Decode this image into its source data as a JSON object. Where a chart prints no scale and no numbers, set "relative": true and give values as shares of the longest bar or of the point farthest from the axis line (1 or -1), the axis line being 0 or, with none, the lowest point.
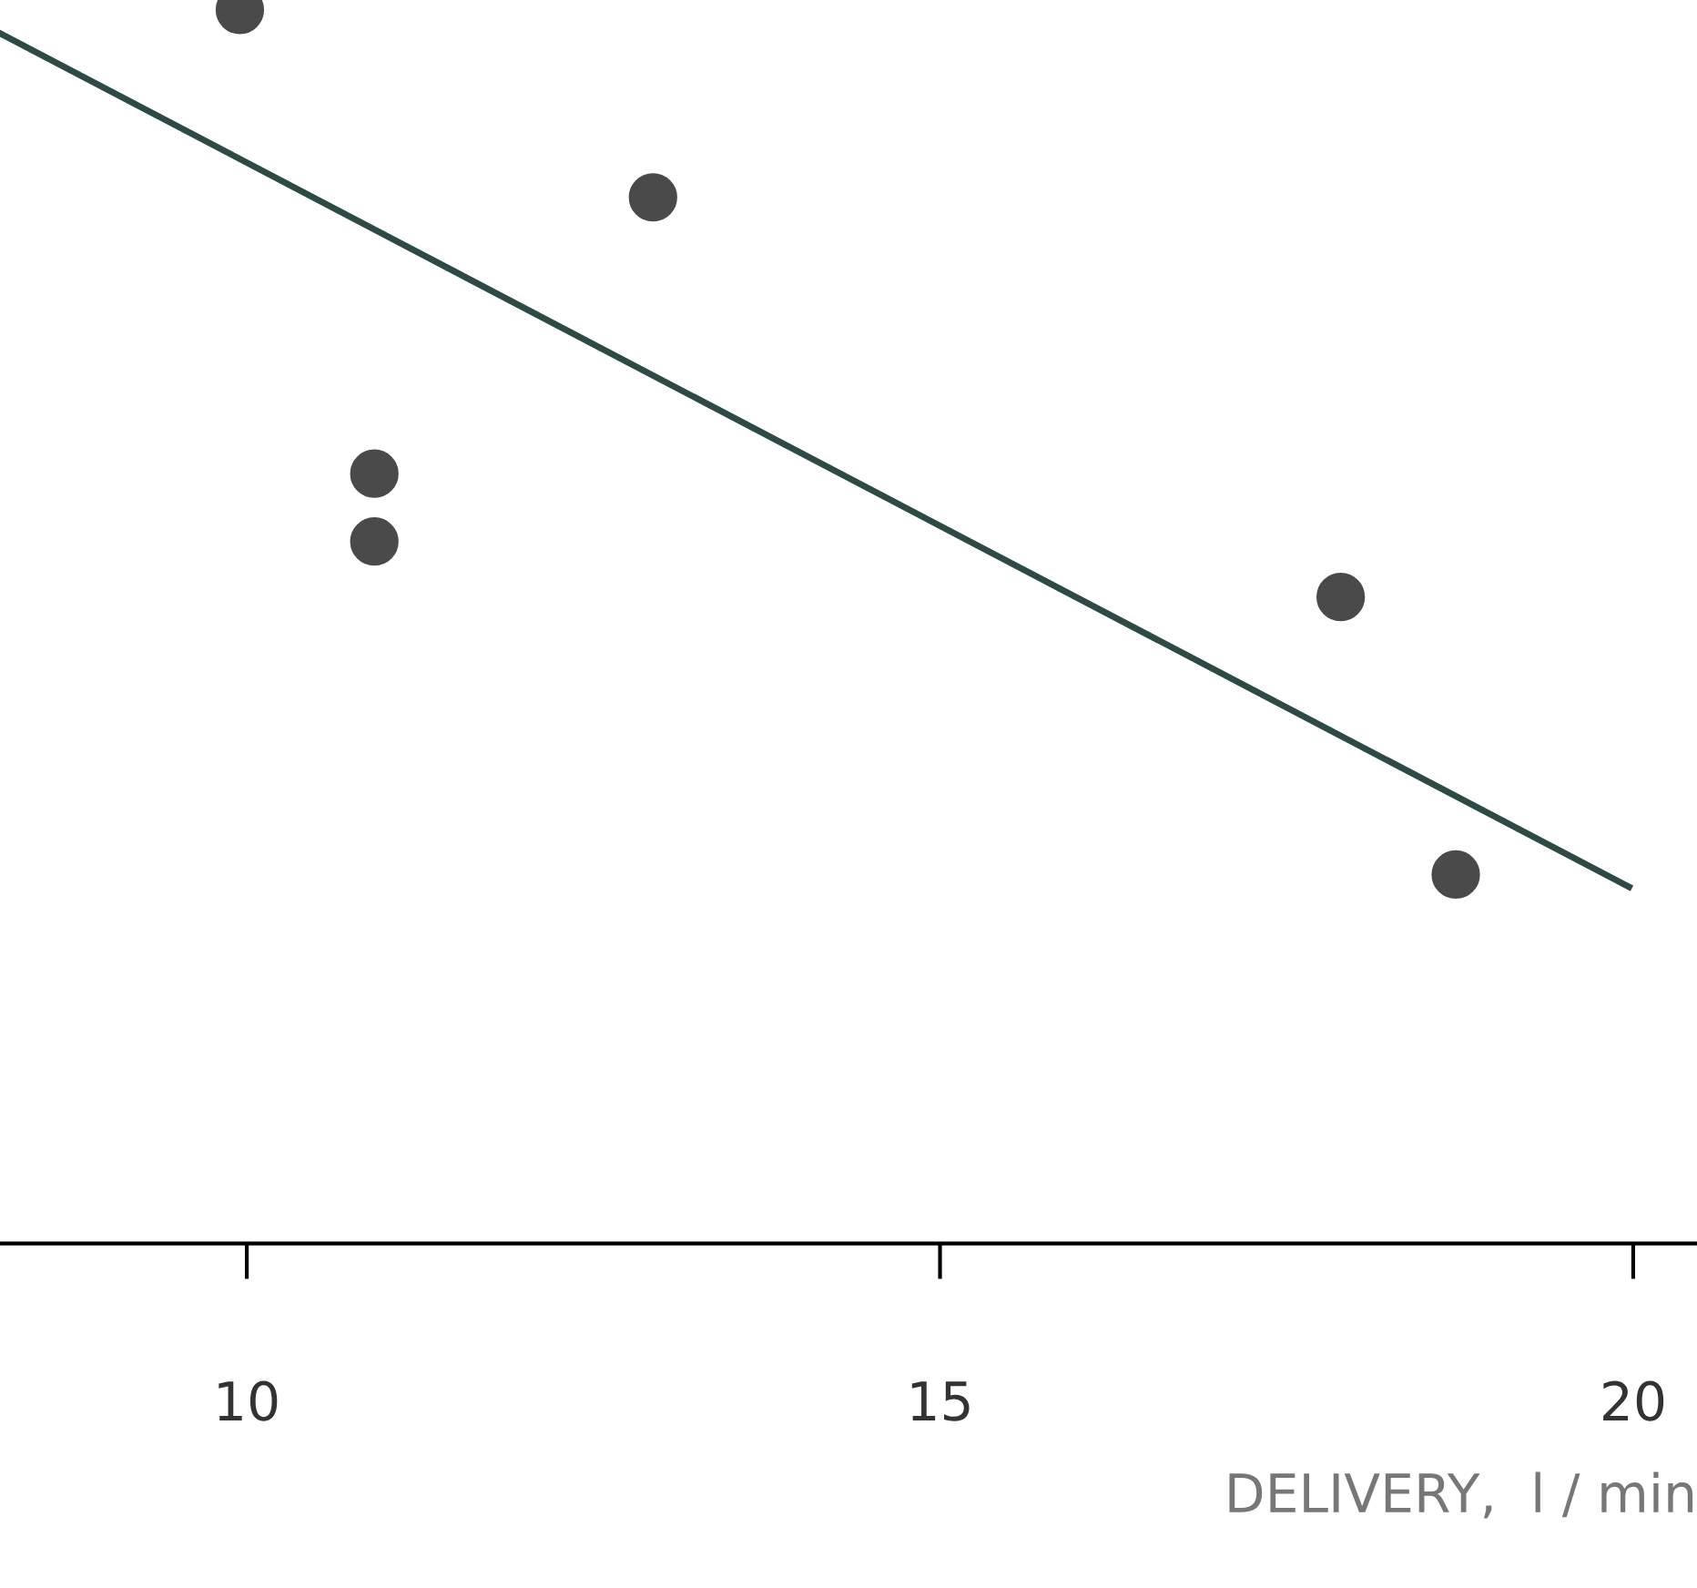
{
  "chart_data": {
    "type": "scatter",
    "xlabel": "DELIVERY,  l / min",
    "relative": true,
    "xlim": [
      8.22,
      20.46
    ],
    "xticks": [
      10,
      15,
      20
    ],
    "tick_labels": "x",
    "grid": false,
    "legend": false,
    "marker": "circle",
    "series": [
      {
        "color": "#4a4a4a",
        "x": [
          9.95,
          12.93,
          10.92,
          10.92,
          17.89,
          18.72
        ],
        "values": [
          1.0,
          0.848,
          0.624,
          0.569,
          0.524,
          0.299
        ]
      },
      {
        "type": "line",
        "color": "#2d4a44",
        "line_style": "solid",
        "marker": "none",
        "x": [
          8.22,
          19.97
        ],
        "values": [
          0.981,
          0.289
        ]
      }
    ]
  }
}
